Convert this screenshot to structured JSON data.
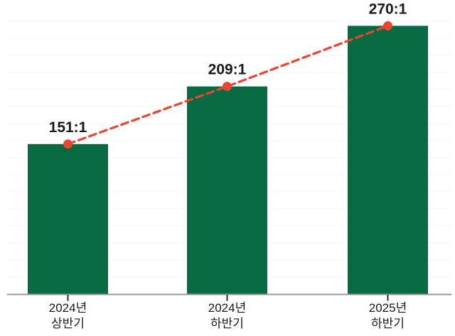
{
  "chart_data": {
    "type": "bar",
    "title": "",
    "xlabel": "",
    "ylabel": "",
    "categories": [
      [
        "2024년",
        "상반기"
      ],
      [
        "2024년",
        "하반기"
      ],
      [
        "2025년",
        "하반기"
      ]
    ],
    "values": [
      151,
      209,
      270
    ],
    "value_labels": [
      "151:1",
      "209:1",
      "270:1"
    ],
    "value_unit": "ratio-to-1",
    "ylim": [
      0,
      296
    ],
    "grid": "faint-horizontal",
    "legend": "none",
    "overlay_line": {
      "type": "line",
      "style": "dashed",
      "marker": "circle",
      "values": [
        151,
        209,
        270
      ]
    },
    "colors": {
      "bar": "#076a42",
      "line": "#e8462f",
      "marker": "#e8462f",
      "axis": "#999999",
      "tick": "#2a2a2a",
      "text": "#1a1a1a",
      "grid": "#f5f5f5",
      "background": "#ffffff"
    }
  }
}
